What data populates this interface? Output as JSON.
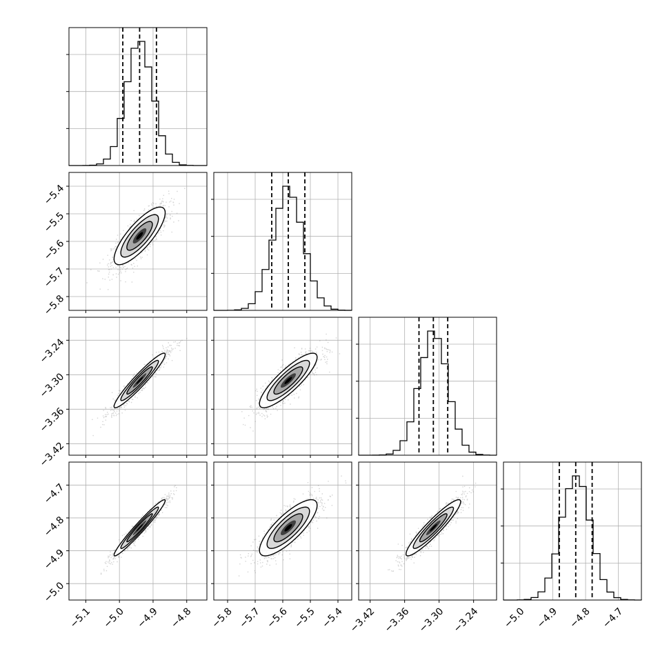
{
  "chart_data": {
    "type": "corner",
    "title": "",
    "grid": true,
    "n_params": 4,
    "params": [
      {
        "range": [
          -5.15,
          -4.74
        ],
        "ticks": [
          -5.1,
          -5.0,
          -4.9,
          -4.8
        ],
        "tick_labels": [
          "−5.1",
          "−5.0",
          "−4.9",
          "−4.8"
        ],
        "mean": -4.94,
        "std": 0.04,
        "quantiles": [
          -4.99,
          -4.94,
          -4.89
        ]
      },
      {
        "range": [
          -5.85,
          -5.35
        ],
        "ticks": [
          -5.8,
          -5.7,
          -5.6,
          -5.5,
          -5.4
        ],
        "tick_labels": [
          "−5.8",
          "−5.7",
          "−5.6",
          "−5.5",
          "−5.4"
        ],
        "mean": -5.58,
        "std": 0.055,
        "quantiles": [
          -5.64,
          -5.58,
          -5.52
        ]
      },
      {
        "range": [
          -3.44,
          -3.2
        ],
        "ticks": [
          -3.42,
          -3.36,
          -3.3,
          -3.24
        ],
        "tick_labels": [
          "−3.42",
          "−3.36",
          "−3.30",
          "−3.24"
        ],
        "mean": -3.31,
        "std": 0.025,
        "quantiles": [
          -3.335,
          -3.31,
          -3.285
        ]
      },
      {
        "range": [
          -5.05,
          -4.63
        ],
        "ticks": [
          -5.0,
          -4.9,
          -4.8,
          -4.7
        ],
        "tick_labels": [
          "−5.0",
          "−4.9",
          "−4.8",
          "−4.7"
        ],
        "mean": -4.83,
        "std": 0.045,
        "quantiles": [
          -4.88,
          -4.83,
          -4.78
        ]
      }
    ],
    "correlations": [
      [
        1.0,
        0.8,
        0.95,
        0.97
      ],
      [
        0.8,
        1.0,
        0.85,
        0.8
      ],
      [
        0.95,
        0.85,
        1.0,
        0.93
      ],
      [
        0.97,
        0.8,
        0.93,
        1.0
      ]
    ],
    "colors": {
      "points": "#808080",
      "contour": "#000000",
      "hist": "#000000",
      "grid": "#b0b0b0"
    }
  }
}
